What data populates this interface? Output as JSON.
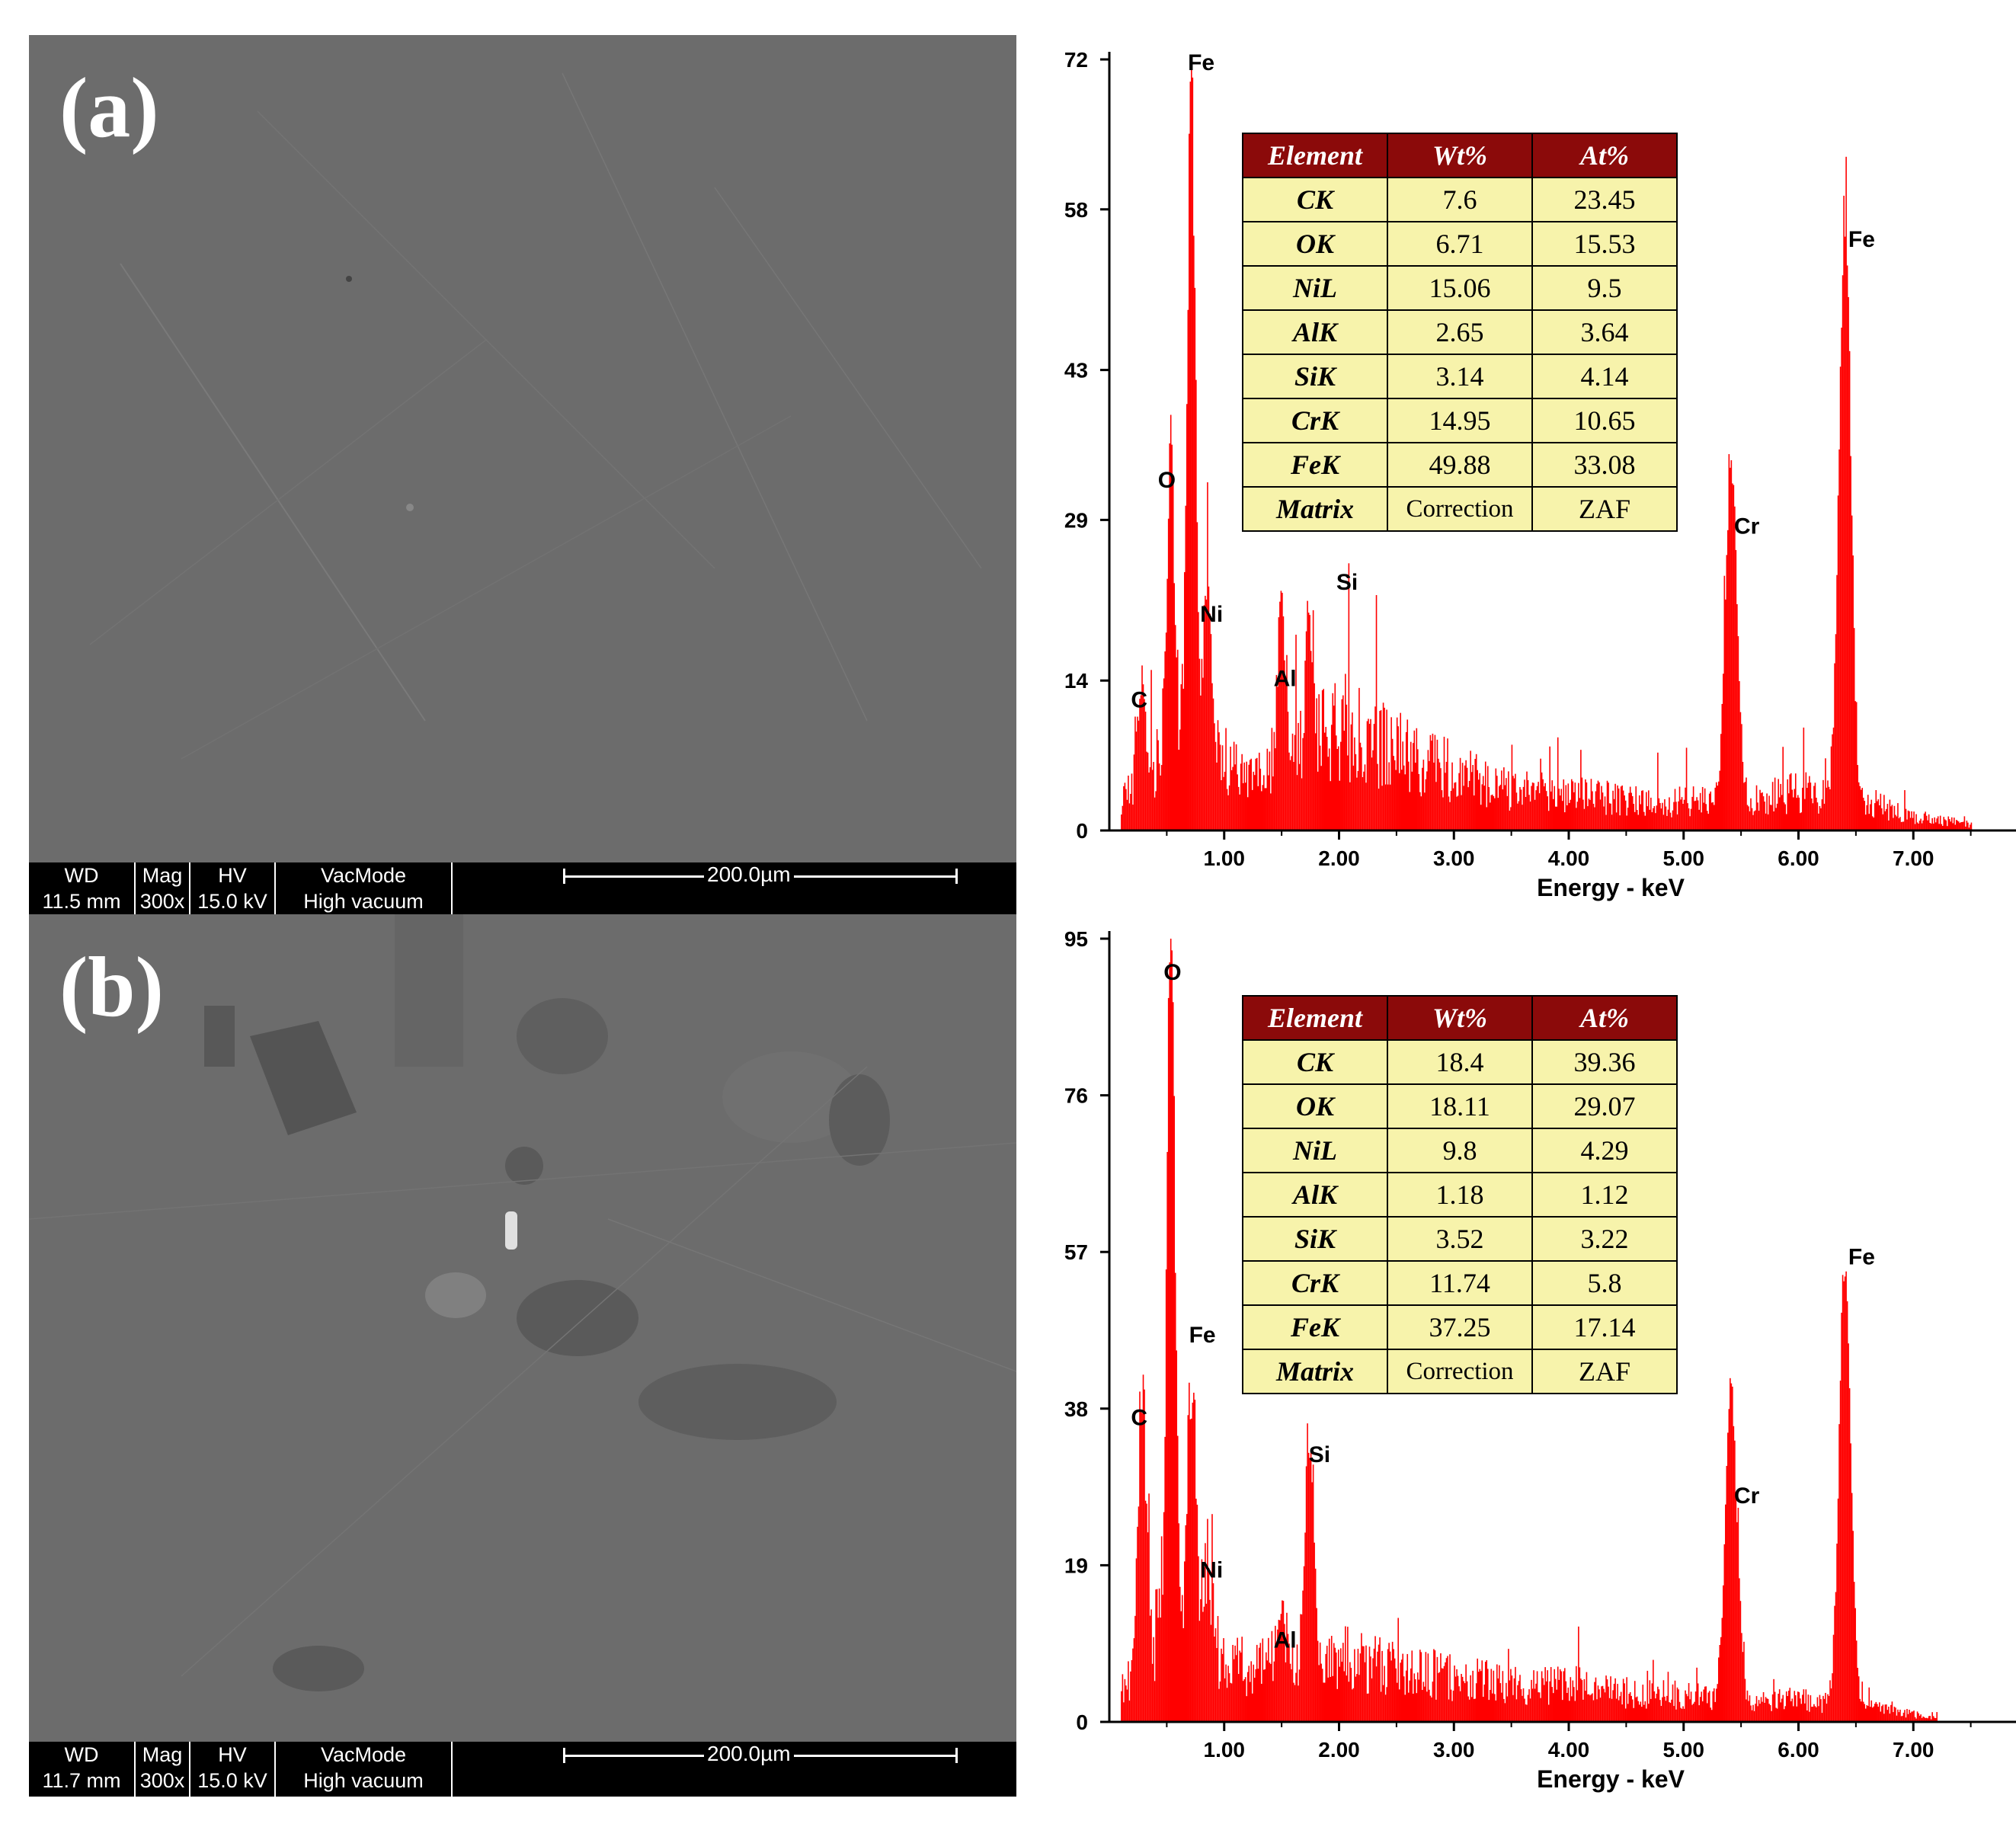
{
  "panels": [
    {
      "id": "a",
      "label": "(a)",
      "sem": {
        "databar": {
          "headers": [
            "WD",
            "Mag",
            "HV",
            "VacMode"
          ],
          "values": [
            "11.5 mm",
            "300x",
            "15.0 kV",
            "High vacuum"
          ],
          "scale_label": "200.0µm"
        }
      },
      "table": {
        "headers": [
          "Element",
          "Wt%",
          "At%"
        ],
        "rows": [
          [
            "CK",
            "7.6",
            "23.45"
          ],
          [
            "OK",
            "6.71",
            "15.53"
          ],
          [
            "NiL",
            "15.06",
            "9.5"
          ],
          [
            "AlK",
            "2.65",
            "3.64"
          ],
          [
            "SiK",
            "3.14",
            "4.14"
          ],
          [
            "CrK",
            "14.95",
            "10.65"
          ],
          [
            "FeK",
            "49.88",
            "33.08"
          ],
          [
            "Matrix",
            "Correction",
            "ZAF"
          ]
        ]
      }
    },
    {
      "id": "b",
      "label": "(b)",
      "sem": {
        "databar": {
          "headers": [
            "WD",
            "Mag",
            "HV",
            "VacMode"
          ],
          "values": [
            "11.7 mm",
            "300x",
            "15.0 kV",
            "High vacuum"
          ],
          "scale_label": "200.0µm"
        }
      },
      "table": {
        "headers": [
          "Element",
          "Wt%",
          "At%"
        ],
        "rows": [
          [
            "CK",
            "18.4",
            "39.36"
          ],
          [
            "OK",
            "18.11",
            "29.07"
          ],
          [
            "NiL",
            "9.8",
            "4.29"
          ],
          [
            "AlK",
            "1.18",
            "1.12"
          ],
          [
            "SiK",
            "3.52",
            "3.22"
          ],
          [
            "CrK",
            "11.74",
            "5.8"
          ],
          [
            "FeK",
            "37.25",
            "17.14"
          ],
          [
            "Matrix",
            "Correction",
            "ZAF"
          ]
        ]
      }
    }
  ],
  "colors": {
    "spectrum": "#ff0000",
    "table_header": "#8b0a0a",
    "table_cell": "#f7f3ab"
  },
  "chart_data": [
    {
      "type": "bar",
      "xlabel": "Energy - keV",
      "xlim": [
        0,
        8.0
      ],
      "ylim": [
        0,
        72
      ],
      "xticks": [
        "1.00",
        "2.00",
        "3.00",
        "4.00",
        "5.00",
        "6.00",
        "7.00"
      ],
      "yticks": [
        "0",
        "14",
        "29",
        "43",
        "58",
        "72"
      ],
      "peaks": [
        {
          "label": "C",
          "energy": 0.28,
          "counts": 9
        },
        {
          "label": "O",
          "energy": 0.53,
          "counts": 31
        },
        {
          "label": "Fe",
          "energy": 0.71,
          "counts": 70
        },
        {
          "label": "Ni",
          "energy": 0.85,
          "counts": 18
        },
        {
          "label": "Al",
          "energy": 1.49,
          "counts": 16
        },
        {
          "label": "Si",
          "energy": 1.74,
          "counts": 14
        },
        {
          "label": "Cr",
          "energy": 5.41,
          "counts": 35
        },
        {
          "label": "Fe",
          "energy": 6.4,
          "counts": 60
        }
      ],
      "peak_labels": [
        {
          "text": "C",
          "energy": 0.26,
          "counts": 11.5
        },
        {
          "text": "O",
          "energy": 0.5,
          "counts": 32
        },
        {
          "text": "Fe",
          "energy": 0.8,
          "counts": 71
        },
        {
          "text": "Ni",
          "energy": 0.89,
          "counts": 19.5
        },
        {
          "text": "Al",
          "energy": 1.53,
          "counts": 13.5
        },
        {
          "text": "Si",
          "energy": 2.07,
          "counts": 22.5
        },
        {
          "text": "Cr",
          "energy": 5.55,
          "counts": 27.7
        },
        {
          "text": "Fe",
          "energy": 6.55,
          "counts": 54.5
        }
      ],
      "background": [
        [
          0.1,
          3
        ],
        [
          0.4,
          7
        ],
        [
          0.9,
          8
        ],
        [
          1.2,
          5
        ],
        [
          1.6,
          7
        ],
        [
          2.0,
          11
        ],
        [
          2.5,
          8
        ],
        [
          3.0,
          6
        ],
        [
          3.5,
          4
        ],
        [
          4.0,
          4
        ],
        [
          4.5,
          3
        ],
        [
          5.0,
          3
        ],
        [
          5.5,
          3
        ],
        [
          6.0,
          4
        ],
        [
          6.6,
          3
        ],
        [
          7.0,
          1.5
        ],
        [
          7.5,
          0.6
        ]
      ],
      "max_energy": 7.5
    },
    {
      "type": "bar",
      "xlabel": "Energy - keV",
      "xlim": [
        0,
        8.0
      ],
      "ylim": [
        0,
        95
      ],
      "xticks": [
        "1.00",
        "2.00",
        "3.00",
        "4.00",
        "5.00",
        "6.00",
        "7.00"
      ],
      "yticks": [
        "0",
        "19",
        "38",
        "57",
        "76",
        "95"
      ],
      "peaks": [
        {
          "label": "C",
          "energy": 0.28,
          "counts": 34
        },
        {
          "label": "O",
          "energy": 0.53,
          "counts": 90
        },
        {
          "label": "Fe",
          "energy": 0.71,
          "counts": 37
        },
        {
          "label": "Ni",
          "energy": 0.85,
          "counts": 12
        },
        {
          "label": "Al",
          "energy": 1.49,
          "counts": 8
        },
        {
          "label": "Si",
          "energy": 1.74,
          "counts": 31
        },
        {
          "label": "Cr",
          "energy": 5.41,
          "counts": 41
        },
        {
          "label": "Fe",
          "energy": 6.4,
          "counts": 58
        }
      ],
      "peak_labels": [
        {
          "text": "O",
          "energy": 0.55,
          "counts": 90
        },
        {
          "text": "C",
          "energy": 0.26,
          "counts": 36
        },
        {
          "text": "Fe",
          "energy": 0.81,
          "counts": 46
        },
        {
          "text": "Ni",
          "energy": 0.89,
          "counts": 17.5
        },
        {
          "text": "Al",
          "energy": 1.53,
          "counts": 9
        },
        {
          "text": "Si",
          "energy": 1.83,
          "counts": 31.5
        },
        {
          "text": "Cr",
          "energy": 5.55,
          "counts": 26.5
        },
        {
          "text": "Fe",
          "energy": 6.55,
          "counts": 55.5
        }
      ],
      "background": [
        [
          0.1,
          4
        ],
        [
          0.4,
          12
        ],
        [
          0.9,
          10
        ],
        [
          1.2,
          7
        ],
        [
          1.6,
          8
        ],
        [
          2.0,
          9
        ],
        [
          2.5,
          7
        ],
        [
          3.0,
          6
        ],
        [
          3.5,
          5
        ],
        [
          4.0,
          5
        ],
        [
          4.5,
          4
        ],
        [
          5.0,
          3.5
        ],
        [
          5.5,
          3
        ],
        [
          6.0,
          3
        ],
        [
          6.6,
          2
        ],
        [
          7.0,
          1
        ],
        [
          7.2,
          0.5
        ]
      ],
      "max_energy": 7.2
    }
  ]
}
